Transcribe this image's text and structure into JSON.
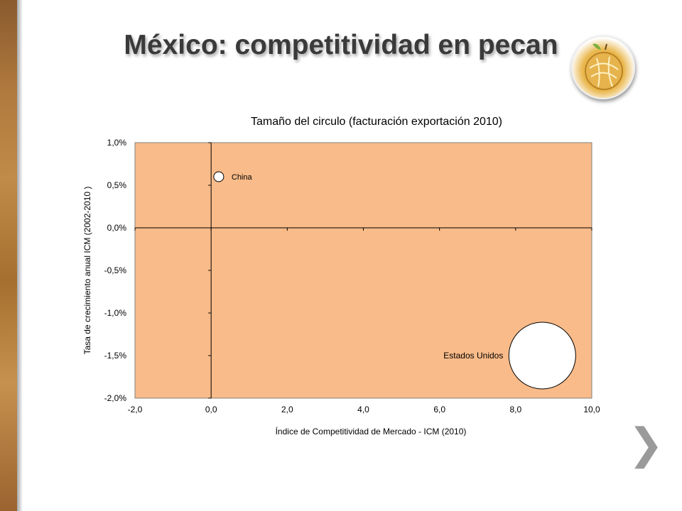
{
  "slide": {
    "title": "México: competitividad en pecan",
    "logo_icon": "pecan-logo-icon",
    "next_icon": "chevron-right-icon"
  },
  "chart_data": {
    "type": "scatter",
    "title": "Tamaño del circulo (facturación  exportación 2010)",
    "xlabel": "Índice de Competitividad de Mercado - ICM (2010)",
    "ylabel": "Tasa de crecimiento anual ICM (2002-2010 )",
    "xlim": [
      -2.0,
      10.0
    ],
    "ylim": [
      -2.0,
      1.0
    ],
    "x_ticks": [
      "-2,0",
      "0,0",
      "2,0",
      "4,0",
      "6,0",
      "8,0",
      "10,0"
    ],
    "y_ticks": [
      "1,0%",
      "0,5%",
      "0,0%",
      "-0,5%",
      "-1,0%",
      "-1,5%",
      "-2,0%"
    ],
    "plot_background": "#f9bb89",
    "grid": false,
    "points": [
      {
        "label": "China",
        "x": 0.2,
        "y": 0.6,
        "size": 1
      },
      {
        "label": "Estados Unidos",
        "x": 8.7,
        "y": -1.5,
        "size": 100
      }
    ]
  }
}
